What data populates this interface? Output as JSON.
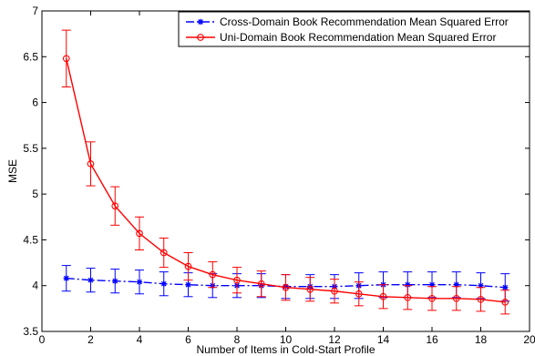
{
  "chart_data": {
    "type": "line",
    "title": "",
    "xlabel": "Number of Items in Cold-Start Profile",
    "ylabel": "MSE",
    "xlim": [
      0,
      20
    ],
    "ylim": [
      3.5,
      7
    ],
    "xticks": [
      0,
      2,
      4,
      6,
      8,
      10,
      12,
      14,
      16,
      18,
      20
    ],
    "xtick_labels": [
      "0",
      "2",
      "4",
      "6",
      "8",
      "10",
      "12",
      "14",
      "16",
      "18",
      "20"
    ],
    "yticks": [
      3.5,
      4,
      4.5,
      5,
      5.5,
      6,
      6.5,
      7
    ],
    "ytick_labels": [
      "3.5",
      "4",
      "4.5",
      "5",
      "5.5",
      "6",
      "6.5",
      "7"
    ],
    "grid": false,
    "legend_position": "top-right",
    "x": [
      1,
      2,
      3,
      4,
      5,
      6,
      7,
      8,
      9,
      10,
      11,
      12,
      13,
      14,
      15,
      16,
      17,
      18,
      19
    ],
    "series": [
      {
        "name": "Cross-Domain Book Recommendation Mean Squared Error",
        "color": "#0000ff",
        "line_style": "dash-dot",
        "marker": "asterisk",
        "values": [
          4.08,
          4.06,
          4.05,
          4.04,
          4.02,
          4.01,
          4.0,
          4.0,
          4.0,
          3.99,
          3.99,
          3.99,
          4.0,
          4.01,
          4.01,
          4.01,
          4.01,
          4.0,
          3.98
        ],
        "errors": [
          0.14,
          0.13,
          0.13,
          0.13,
          0.13,
          0.13,
          0.13,
          0.13,
          0.13,
          0.13,
          0.13,
          0.13,
          0.14,
          0.14,
          0.14,
          0.14,
          0.14,
          0.14,
          0.15
        ]
      },
      {
        "name": "Uni-Domain Book Recommendation Mean Squared Error",
        "color": "#ff0000",
        "line_style": "solid",
        "marker": "circle",
        "values": [
          6.48,
          5.33,
          4.87,
          4.57,
          4.36,
          4.21,
          4.12,
          4.06,
          4.02,
          3.98,
          3.96,
          3.94,
          3.91,
          3.88,
          3.87,
          3.86,
          3.86,
          3.85,
          3.82
        ],
        "errors": [
          0.31,
          0.24,
          0.21,
          0.18,
          0.16,
          0.15,
          0.14,
          0.14,
          0.14,
          0.14,
          0.13,
          0.13,
          0.13,
          0.13,
          0.13,
          0.13,
          0.13,
          0.13,
          0.13
        ]
      }
    ]
  }
}
